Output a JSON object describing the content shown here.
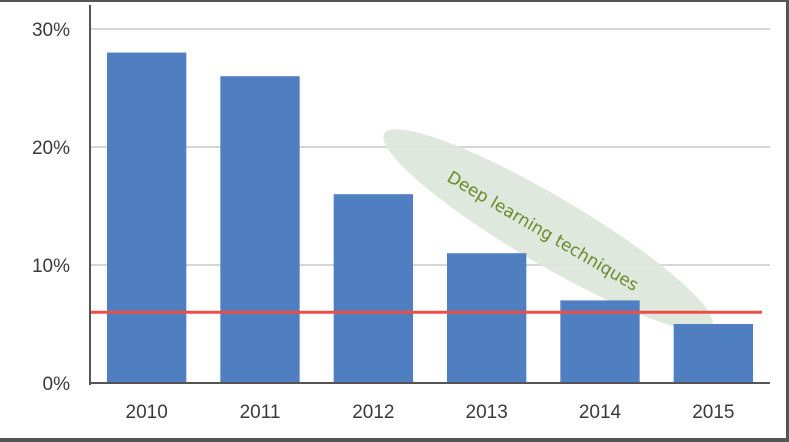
{
  "chart_data": {
    "type": "bar",
    "categories": [
      "2010",
      "2011",
      "2012",
      "2013",
      "2014",
      "2015"
    ],
    "values": [
      28,
      26,
      16,
      11,
      7,
      5
    ],
    "y_unit": "%",
    "ylim": [
      0,
      30
    ],
    "y_ticks": [
      0,
      10,
      20,
      30
    ],
    "y_tick_labels": [
      "0%",
      "10%",
      "20%",
      "30%"
    ],
    "grid": true,
    "reference_line": {
      "value": 6,
      "color": "#e8504a"
    },
    "annotation": {
      "text": "Deep learning techniques",
      "color": "#6a8a2c"
    },
    "colors": {
      "bar": "#4f7ec1",
      "grid": "#c8c8c8",
      "axis": "#555555",
      "highlight": "#dde7da"
    }
  }
}
